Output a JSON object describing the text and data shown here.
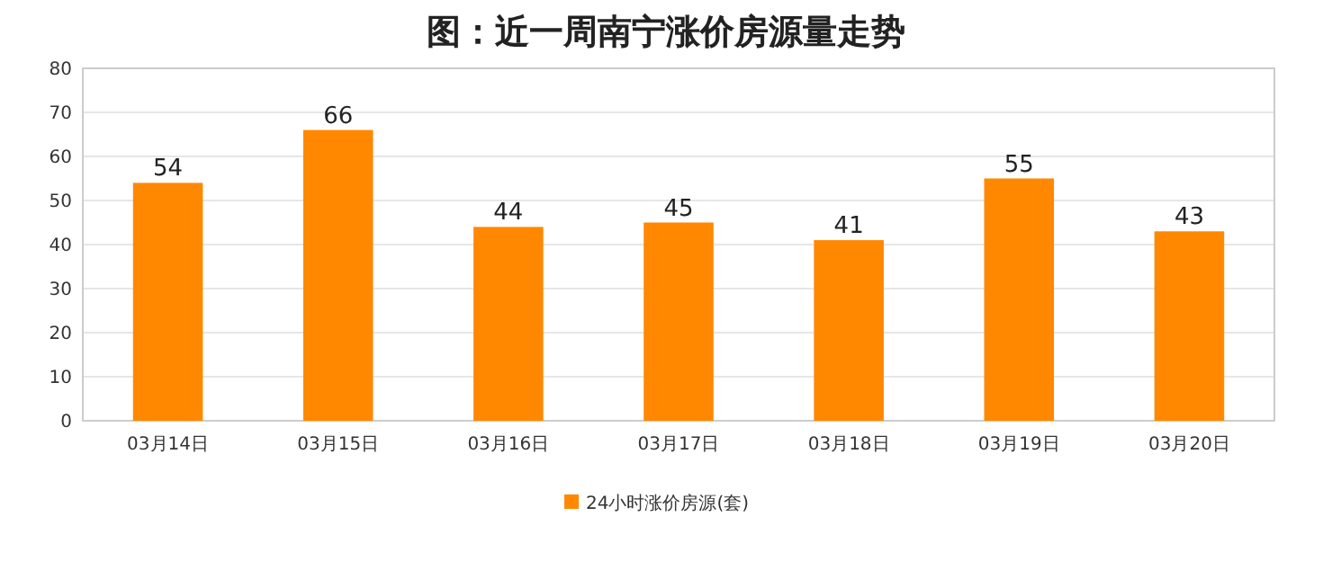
{
  "chart_data": {
    "type": "bar",
    "title": "图：近一周南宁涨价房源量走势",
    "categories": [
      "03月14日",
      "03月15日",
      "03月16日",
      "03月17日",
      "03月18日",
      "03月19日",
      "03月20日"
    ],
    "series": [
      {
        "name": "24小时涨价房源(套)",
        "color": "#ff8800",
        "values": [
          54,
          66,
          44,
          45,
          41,
          55,
          43
        ]
      }
    ],
    "ylim": [
      0,
      80
    ],
    "yticks": [
      0,
      10,
      20,
      30,
      40,
      50,
      60,
      70,
      80
    ],
    "grid": "y",
    "legend": "bottom",
    "data_labels": true
  }
}
